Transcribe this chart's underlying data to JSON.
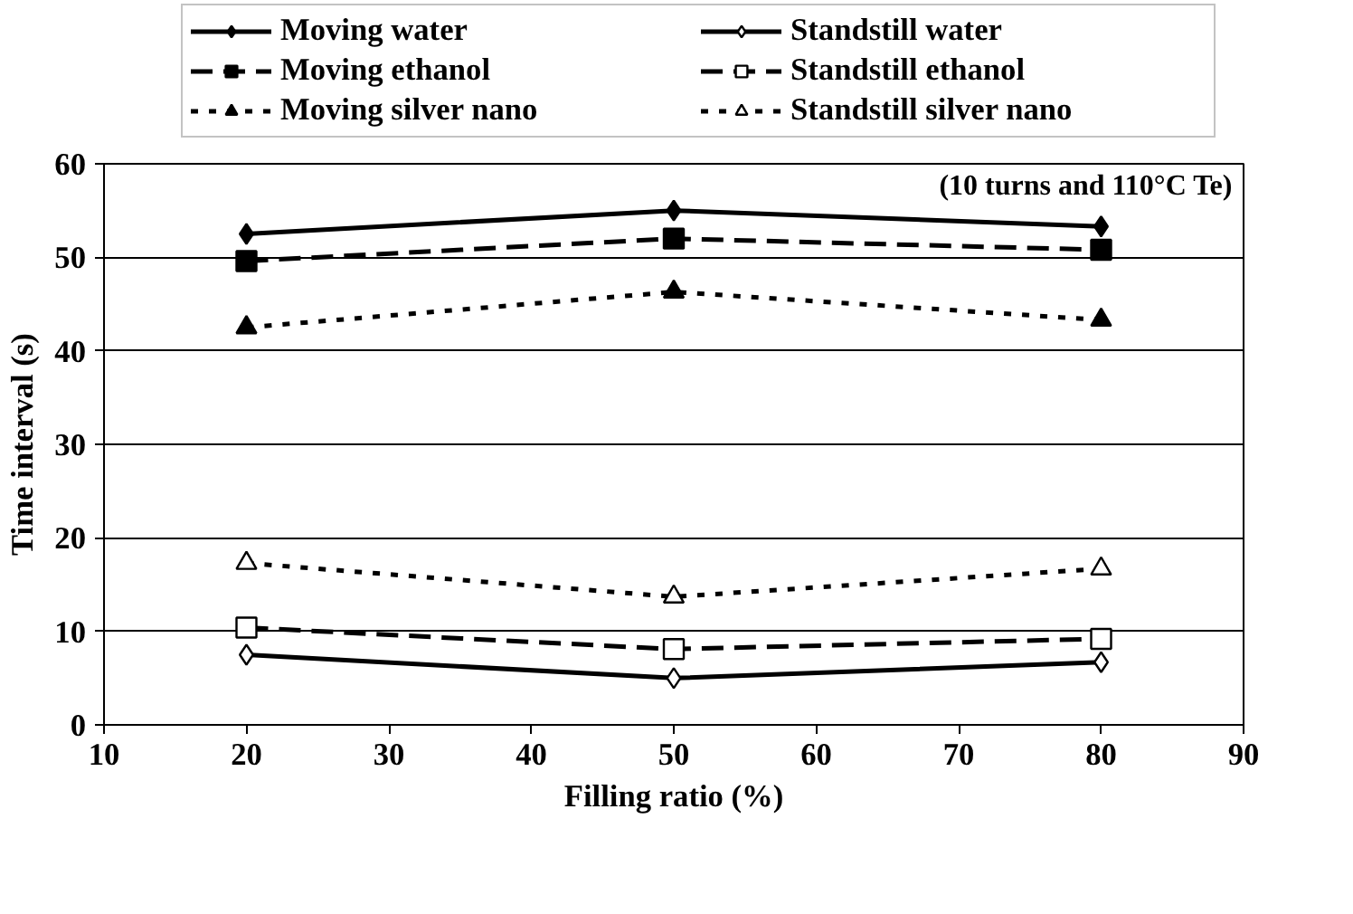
{
  "chart_data": {
    "type": "line",
    "xlabel": "Filling ratio (%)",
    "ylabel": "Time interval (s)",
    "annotations": [
      "(10 turns and 110°C Te)"
    ],
    "x": [
      20,
      50,
      80
    ],
    "series": [
      {
        "name": "Moving water",
        "color": "#000000",
        "marker": "diamond",
        "line_style": "solid",
        "values": [
          52.5,
          55.0,
          53.3
        ]
      },
      {
        "name": "Moving ethanol",
        "color": "#000000",
        "marker": "square",
        "line_style": "dashed",
        "values": [
          49.6,
          52.0,
          50.8
        ]
      },
      {
        "name": "Moving silver nano",
        "color": "#000000",
        "marker": "triangle",
        "line_style": "dotted",
        "values": [
          42.5,
          46.3,
          43.3
        ]
      },
      {
        "name": "Standstill water",
        "color": "#000000",
        "marker": "diamond_open",
        "line_style": "solid",
        "values": [
          7.5,
          5.0,
          6.7
        ]
      },
      {
        "name": "Standstill ethanol",
        "color": "#000000",
        "marker": "square_open",
        "line_style": "dashed",
        "values": [
          10.4,
          8.1,
          9.2
        ]
      },
      {
        "name": "Standstill silver nano",
        "color": "#000000",
        "marker": "triangle_open",
        "line_style": "dotted",
        "values": [
          17.3,
          13.7,
          16.7
        ]
      }
    ],
    "xlim": [
      10,
      90
    ],
    "xticks": [
      10,
      20,
      30,
      40,
      50,
      60,
      70,
      80,
      90
    ],
    "ylim": [
      0,
      60
    ],
    "yticks": [
      0,
      10,
      20,
      30,
      40,
      50,
      60
    ],
    "grid": "y",
    "legend": "top"
  }
}
